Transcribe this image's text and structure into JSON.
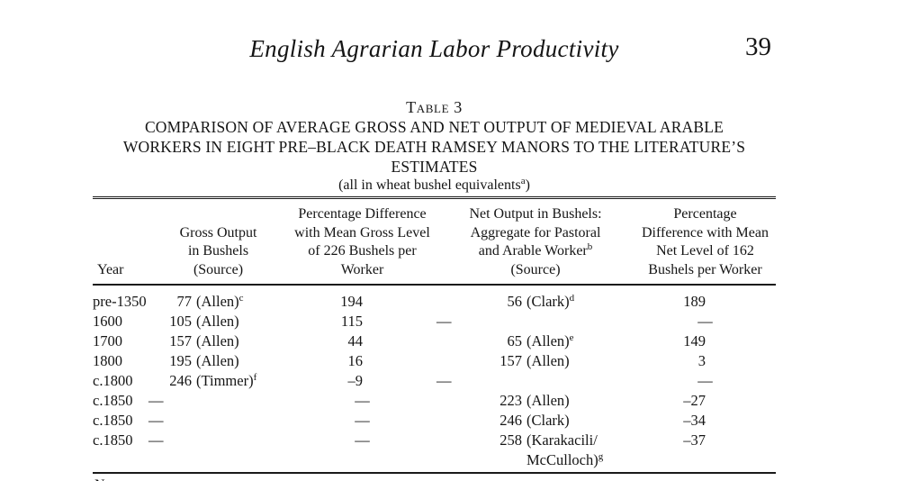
{
  "page": {
    "running_title": "English Agrarian Labor Productivity",
    "page_number": "39",
    "notes_partial": "N"
  },
  "table": {
    "label": "Table 3",
    "title_lines": [
      "COMPARISON OF AVERAGE GROSS AND NET OUTPUT OF MEDIEVAL ARABLE",
      "WORKERS IN EIGHT PRE–BLACK DEATH RAMSEY MANORS TO THE LITERATURE’S",
      "ESTIMATES"
    ],
    "subtitle": "(all in wheat bushel equivalents^a^)",
    "headers": [
      {
        "lines": [
          "Year"
        ]
      },
      {
        "lines": [
          "Gross Output",
          "in Bushels",
          "(Source)"
        ]
      },
      {
        "lines": [
          "Percentage Difference",
          "with Mean Gross Level",
          "of 226 Bushels per",
          "Worker"
        ]
      },
      {
        "lines": [
          "Net Output in Bushels:",
          "Aggregate for Pastoral",
          "and Arable Worker^b^",
          "(Source)"
        ]
      },
      {
        "lines": [
          "Percentage",
          "Difference with Mean",
          "Net Level of 162",
          "Bushels per Worker"
        ]
      }
    ],
    "missing_dash": "—",
    "rows": [
      {
        "year": "pre-1350",
        "gross": {
          "num": "77",
          "src": "(Allen)^c^"
        },
        "pct_gross": "194",
        "net": {
          "num": "56",
          "src": "(Clark)^d^"
        },
        "pct_net": "189"
      },
      {
        "year": "1600",
        "gross": {
          "num": "105",
          "src": "(Allen)"
        },
        "pct_gross": "115",
        "net": "—",
        "pct_net": "—"
      },
      {
        "year": "1700",
        "gross": {
          "num": "157",
          "src": "(Allen)"
        },
        "pct_gross": "44",
        "net": {
          "num": "65",
          "src": "(Allen)^e^"
        },
        "pct_net": "149"
      },
      {
        "year": "1800",
        "gross": {
          "num": "195",
          "src": "(Allen)"
        },
        "pct_gross": "16",
        "net": {
          "num": "157",
          "src": "(Allen)"
        },
        "pct_net": "3"
      },
      {
        "year": "c.1800",
        "gross": {
          "num": "246",
          "src": "(Timmer)^f^"
        },
        "pct_gross": "–9",
        "net": "—",
        "pct_net": "—"
      },
      {
        "year": "c.1850",
        "gross": "—",
        "pct_gross": "—",
        "net": {
          "num": "223",
          "src": "(Allen)"
        },
        "pct_net": "–27"
      },
      {
        "year": "c.1850",
        "gross": "—",
        "pct_gross": "—",
        "net": {
          "num": "246",
          "src": "(Clark)"
        },
        "pct_net": "–34"
      },
      {
        "year": "c.1850",
        "gross": "—",
        "pct_gross": "—",
        "net": {
          "num": "258",
          "src": "(Karakacili/\nMcCulloch)^g^"
        },
        "pct_net": "–37"
      }
    ]
  }
}
